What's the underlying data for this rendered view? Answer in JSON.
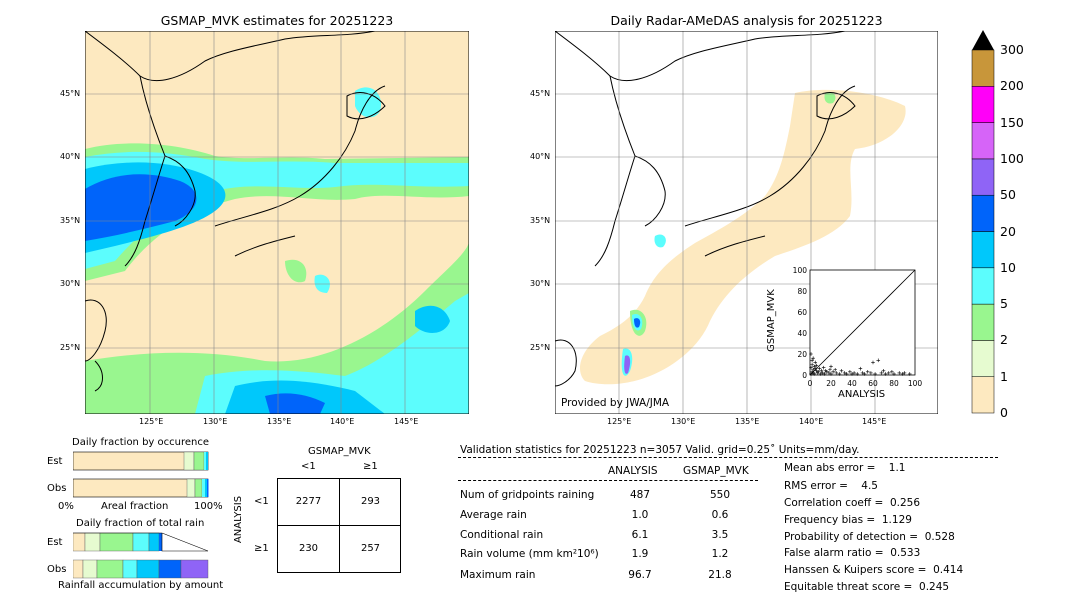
{
  "left_map": {
    "title": "GSMAP_MVK estimates for 20251223",
    "lat_labels": [
      "45°N",
      "40°N",
      "35°N",
      "30°N",
      "25°N"
    ],
    "lon_labels": [
      "125°E",
      "130°E",
      "135°E",
      "140°E",
      "145°E"
    ]
  },
  "right_map": {
    "title": "Daily Radar-AMeDAS analysis for 20251223",
    "lat_labels": [
      "45°N",
      "40°N",
      "35°N",
      "30°N",
      "25°N"
    ],
    "lon_labels": [
      "125°E",
      "130°E",
      "135°E",
      "140°E",
      "145°E"
    ],
    "credit": "Provided by JWA/JMA"
  },
  "colorbar": {
    "ticks": [
      "0",
      "1",
      "2",
      "5",
      "10",
      "20",
      "50",
      "100",
      "150",
      "200",
      "300"
    ],
    "colors": [
      "#fde9c0",
      "#e6fbd0",
      "#99f68f",
      "#5cfdfd",
      "#00c8fb",
      "#0064fa",
      "#8f64f6",
      "#d664f8",
      "#ff00f8",
      "#c8963a"
    ]
  },
  "scatter": {
    "xlabel": "ANALYSIS",
    "ylabel": "GSMAP_MVK",
    "ticks": [
      "0",
      "20",
      "40",
      "60",
      "80",
      "100"
    ]
  },
  "fraction_occurrence": {
    "title": "Daily fraction by occurence",
    "row_labels": [
      "Est",
      "Obs"
    ],
    "axis_left": "0%",
    "axis_mid": "Areal fraction",
    "axis_right": "100%"
  },
  "fraction_total": {
    "title": "Daily fraction of total rain",
    "row_labels": [
      "Est",
      "Obs"
    ],
    "axis_label": "Rainfall accumulation by amount"
  },
  "contingency": {
    "col_header": "GSMAP_MVK",
    "col_labels": [
      "<1",
      "≥1"
    ],
    "row_header": "ANALYSIS",
    "row_labels": [
      "<1",
      "≥1"
    ],
    "cells": [
      [
        "2277",
        "293"
      ],
      [
        "230",
        "257"
      ]
    ]
  },
  "validation": {
    "header": "Validation statistics for 20251223  n=3057 Valid. grid=0.25˚ Units=mm/day.",
    "col_analysis": "ANALYSIS",
    "col_gsmap": "GSMAP_MVK",
    "rows": [
      {
        "label": "Num of gridpoints raining",
        "analysis": "487",
        "gsmap": "550"
      },
      {
        "label": "Average rain",
        "analysis": "1.0",
        "gsmap": "0.6"
      },
      {
        "label": "Conditional rain",
        "analysis": "6.1",
        "gsmap": "3.5"
      },
      {
        "label": "Rain volume (mm km²10⁶)",
        "analysis": "1.9",
        "gsmap": "1.2"
      },
      {
        "label": "Maximum rain",
        "analysis": "96.7",
        "gsmap": "21.8"
      }
    ],
    "scores": [
      "Mean abs error =    1.1",
      "RMS error =    4.5",
      "Correlation coeff =  0.256",
      "Frequency bias =  1.129",
      "Probability of detection =  0.528",
      "False alarm ratio =  0.533",
      "Hanssen & Kuipers score =  0.414",
      "Equitable threat score =  0.245"
    ]
  },
  "chart_data": {
    "type": "scatter",
    "title": "",
    "xlabel": "ANALYSIS",
    "ylabel": "GSMAP_MVK",
    "xlim": [
      0,
      100
    ],
    "ylim": [
      0,
      100
    ],
    "points": [
      [
        1,
        1
      ],
      [
        2,
        3
      ],
      [
        3,
        2
      ],
      [
        4,
        1
      ],
      [
        5,
        6
      ],
      [
        6,
        4
      ],
      [
        7,
        2
      ],
      [
        8,
        3
      ],
      [
        10,
        1
      ],
      [
        12,
        2
      ],
      [
        14,
        1
      ],
      [
        15,
        4
      ],
      [
        18,
        2
      ],
      [
        20,
        1
      ],
      [
        22,
        3
      ],
      [
        25,
        2
      ],
      [
        28,
        1
      ],
      [
        30,
        4
      ],
      [
        33,
        2
      ],
      [
        35,
        1
      ],
      [
        38,
        3
      ],
      [
        40,
        1
      ],
      [
        42,
        2
      ],
      [
        45,
        1
      ],
      [
        48,
        6
      ],
      [
        50,
        2
      ],
      [
        52,
        1
      ],
      [
        55,
        3
      ],
      [
        58,
        2
      ],
      [
        60,
        12
      ],
      [
        62,
        1
      ],
      [
        65,
        14
      ],
      [
        68,
        2
      ],
      [
        70,
        4
      ],
      [
        72,
        1
      ],
      [
        75,
        2
      ],
      [
        78,
        3
      ],
      [
        80,
        1
      ],
      [
        85,
        2
      ],
      [
        88,
        1
      ],
      [
        90,
        2
      ],
      [
        95,
        1
      ],
      [
        2,
        10
      ],
      [
        3,
        16
      ],
      [
        1,
        20
      ],
      [
        4,
        8
      ],
      [
        2,
        14
      ],
      [
        5,
        12
      ],
      [
        1,
        7
      ],
      [
        3,
        5
      ],
      [
        20,
        8
      ],
      [
        24,
        5
      ],
      [
        6,
        9
      ],
      [
        9,
        6
      ],
      [
        11,
        4
      ],
      [
        13,
        7
      ],
      [
        16,
        3
      ],
      [
        19,
        5
      ]
    ]
  }
}
